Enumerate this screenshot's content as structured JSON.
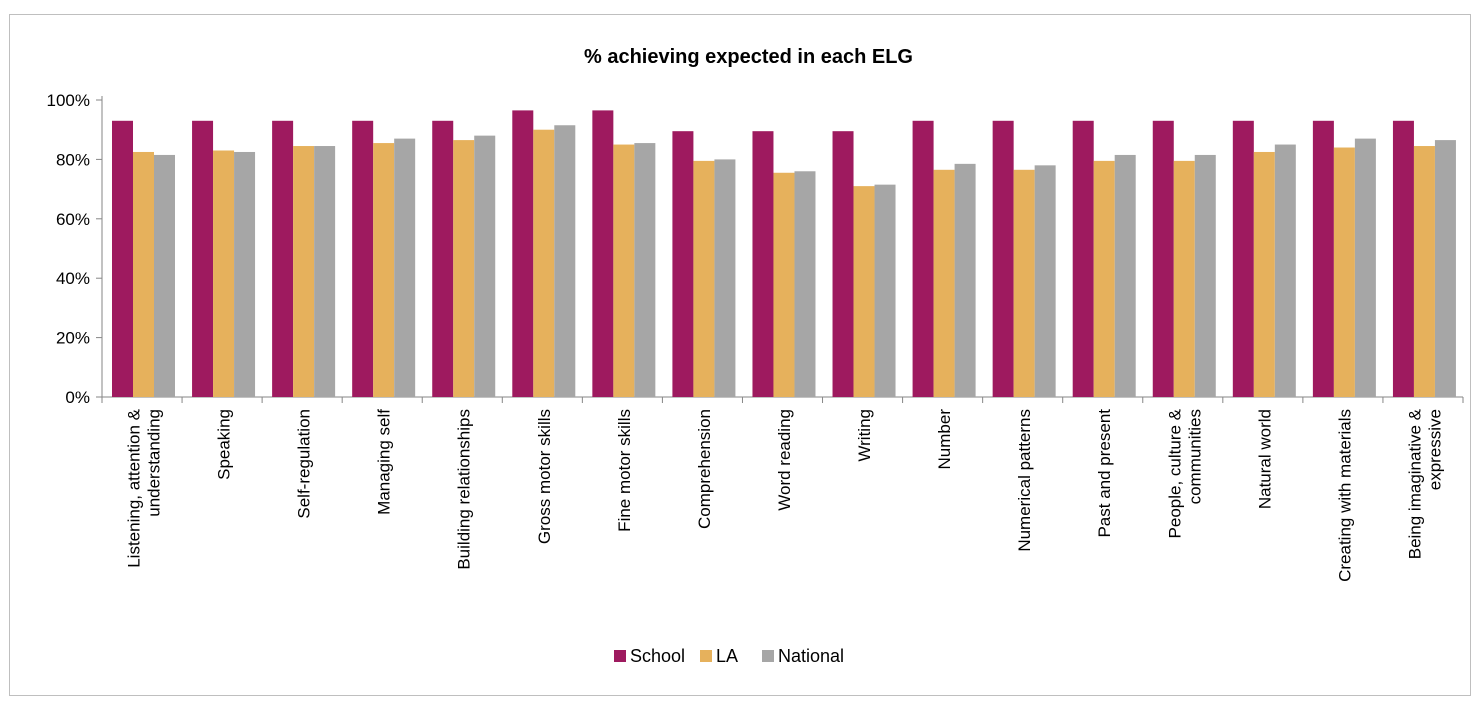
{
  "chart_data": {
    "type": "bar",
    "title": "% achieving expected in each ELG",
    "xlabel": "",
    "ylabel": "",
    "ylim": [
      0,
      100
    ],
    "y_ticks": [
      "0%",
      "20%",
      "40%",
      "60%",
      "80%",
      "100%"
    ],
    "y_tick_values": [
      0,
      20,
      40,
      60,
      80,
      100
    ],
    "grid": false,
    "legend_position": "bottom",
    "categories": [
      "Listening, attention & understanding",
      "Speaking",
      "Self-regulation",
      "Managing self",
      "Building relationships",
      "Gross motor skills",
      "Fine motor skills",
      "Comprehension",
      "Word reading",
      "Writing",
      "Number",
      "Numerical patterns",
      "Past and present",
      "People, culture & communities",
      "Natural world",
      "Creating with materials",
      "Being imaginative & expressive"
    ],
    "category_lines": [
      [
        "Listening, attention &",
        "understanding"
      ],
      [
        "Speaking"
      ],
      [
        "Self-regulation"
      ],
      [
        "Managing self"
      ],
      [
        "Building relationships"
      ],
      [
        "Gross motor skills"
      ],
      [
        "Fine motor skills"
      ],
      [
        "Comprehension"
      ],
      [
        "Word reading"
      ],
      [
        "Writing"
      ],
      [
        "Number"
      ],
      [
        "Numerical patterns"
      ],
      [
        "Past and present"
      ],
      [
        "People, culture &",
        "communities"
      ],
      [
        "Natural world"
      ],
      [
        "Creating with materials"
      ],
      [
        "Being imaginative &",
        "expressive"
      ]
    ],
    "series": [
      {
        "name": "School",
        "color": "#9e1a5f",
        "values": [
          93,
          93,
          93,
          93,
          93,
          96.5,
          96.5,
          89.5,
          89.5,
          89.5,
          93,
          93,
          93,
          93,
          93,
          93,
          93
        ]
      },
      {
        "name": "LA",
        "color": "#e6b15c",
        "values": [
          82.5,
          83,
          84.5,
          85.5,
          86.5,
          90,
          85,
          79.5,
          75.5,
          71,
          76.5,
          76.5,
          79.5,
          79.5,
          82.5,
          84,
          84.5
        ]
      },
      {
        "name": "National",
        "color": "#a6a6a6",
        "values": [
          81.5,
          82.5,
          84.5,
          87,
          88,
          91.5,
          85.5,
          80,
          76,
          71.5,
          78.5,
          78,
          81.5,
          81.5,
          85,
          87,
          86.5
        ]
      }
    ]
  }
}
